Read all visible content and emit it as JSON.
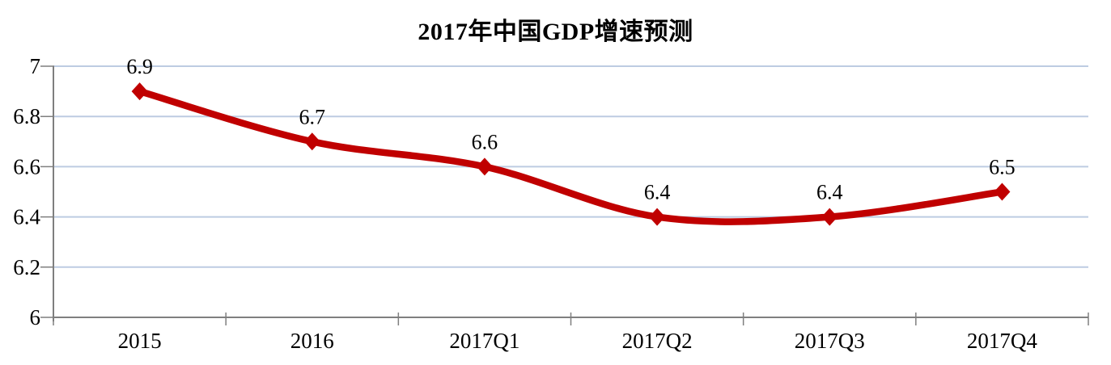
{
  "chart_data": {
    "type": "line",
    "title": "2017年中国GDP增速预测",
    "categories": [
      "2015",
      "2016",
      "2017Q1",
      "2017Q2",
      "2017Q3",
      "2017Q4"
    ],
    "series": [
      {
        "name": "GDP增速",
        "values": [
          6.9,
          6.7,
          6.6,
          6.4,
          6.4,
          6.5
        ],
        "data_labels": [
          "6.9",
          "6.7",
          "6.6",
          "6.4",
          "6.4",
          "6.5"
        ]
      }
    ],
    "xlabel": "",
    "ylabel": "",
    "ylim": [
      6,
      7
    ],
    "y_tick_labels": [
      "6",
      "6.2",
      "6.4",
      "6.6",
      "6.8",
      "7"
    ],
    "grid": true,
    "legend_position": "none",
    "line_style": "smoothed",
    "marker_style": "diamond",
    "colors": {
      "line": "#C00000",
      "marker": "#C00000",
      "gridline": "#BDCCE2",
      "axis": "#7F7F7F",
      "text": "#000000",
      "background": "#FFFFFF"
    }
  }
}
